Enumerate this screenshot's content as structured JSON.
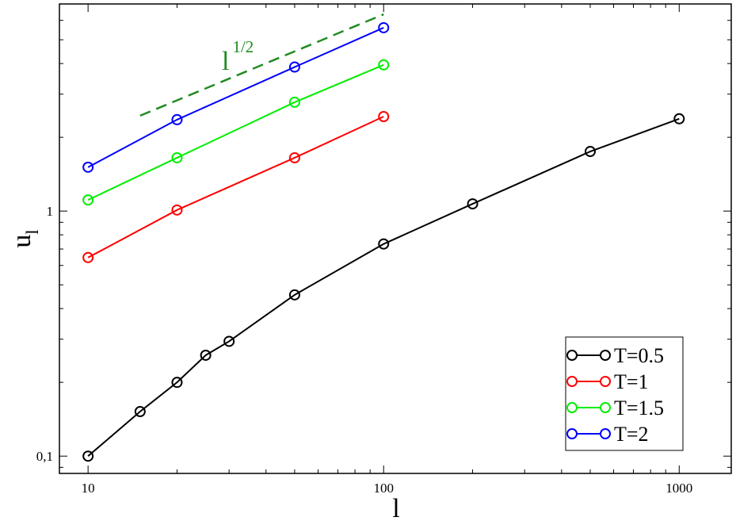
{
  "chart_data": {
    "type": "line",
    "xscale": "log",
    "yscale": "log",
    "xlim": [
      8,
      1500
    ],
    "ylim": [
      0.085,
      7.0
    ],
    "xlabel": "l",
    "ylabel": {
      "base": "u",
      "sub": "l"
    },
    "xticks": [
      {
        "value": 10,
        "label": "10"
      },
      {
        "value": 100,
        "label": "100"
      },
      {
        "value": 1000,
        "label": "1000"
      }
    ],
    "yticks": [
      {
        "value": 0.1,
        "label": "0,1"
      },
      {
        "value": 1,
        "label": "1"
      }
    ],
    "series": [
      {
        "name": "T=0.5",
        "color": "#000000",
        "x": [
          10,
          15,
          20,
          25,
          30,
          50,
          100,
          200,
          500,
          1000
        ],
        "y": [
          0.1,
          0.152,
          0.2,
          0.258,
          0.294,
          0.455,
          0.734,
          1.07,
          1.75,
          2.38
        ]
      },
      {
        "name": "T=1",
        "color": "#ff0000",
        "x": [
          10,
          20,
          50,
          100
        ],
        "y": [
          0.646,
          1.01,
          1.65,
          2.43
        ]
      },
      {
        "name": "T=1.5",
        "color": "#00ee00",
        "x": [
          10,
          20,
          50,
          100
        ],
        "y": [
          1.11,
          1.65,
          2.78,
          3.95
        ]
      },
      {
        "name": "T=2",
        "color": "#0000ff",
        "x": [
          10,
          20,
          50,
          100
        ],
        "y": [
          1.51,
          2.36,
          3.87,
          5.6
        ]
      }
    ],
    "reference_line": {
      "label_base": "l",
      "label_exp": "1/2",
      "color": "#228b22",
      "style": "dashed",
      "x": [
        15,
        100
      ],
      "y": [
        2.45,
        6.35
      ]
    },
    "legend_position": "bottom-right",
    "grid": false
  }
}
